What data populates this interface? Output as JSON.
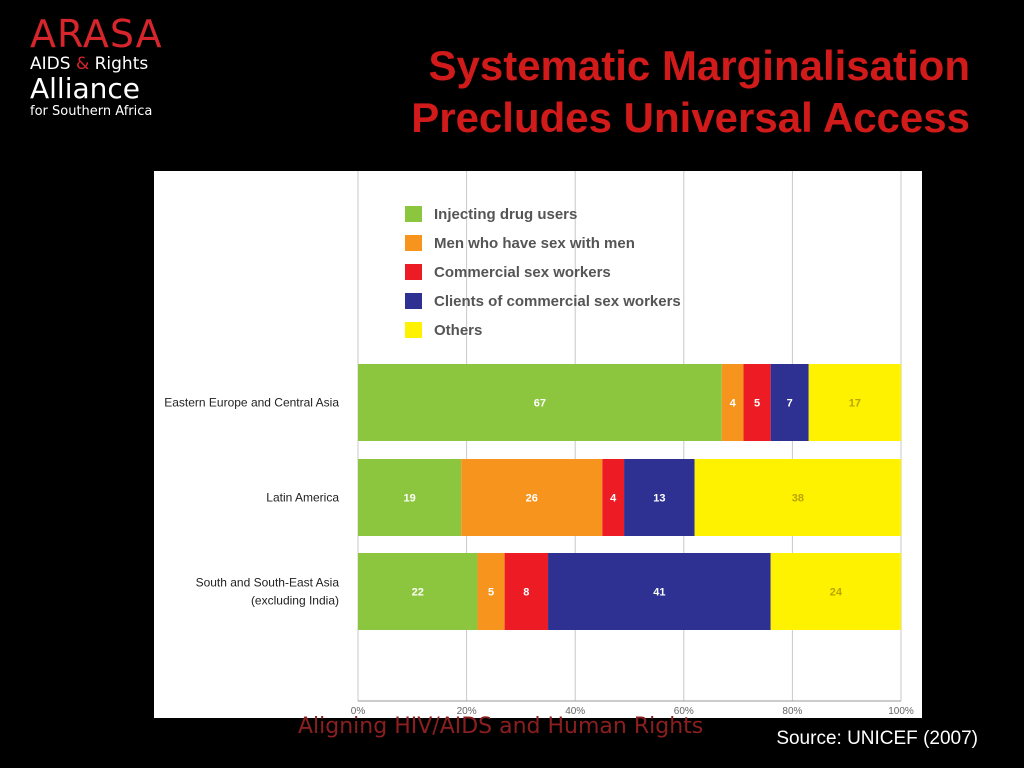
{
  "logo": {
    "line1": "ARASA",
    "line2a": "AIDS",
    "line2amp": "&",
    "line2b": "Rights",
    "line3": "Alliance",
    "line4": "for Southern Africa"
  },
  "title": {
    "line1": "Systematic Marginalisation",
    "line2": "Precludes Universal Access"
  },
  "tagline": "Aligning HIV/AIDS and Human Rights",
  "source": "Source: UNICEF (2007)",
  "chart_data": {
    "type": "bar",
    "orientation": "horizontal",
    "stacked": true,
    "categories": [
      [
        "Eastern Europe and Central Asia"
      ],
      [
        "Latin America"
      ],
      [
        "South and South-East Asia",
        "(excluding India)"
      ]
    ],
    "series": [
      {
        "name": "Injecting drug users",
        "color": "#8cc63f",
        "values": [
          67,
          19,
          22
        ]
      },
      {
        "name": "Men who have sex with men",
        "color": "#f7941d",
        "values": [
          4,
          26,
          5
        ]
      },
      {
        "name": "Commercial sex workers",
        "color": "#ed1c24",
        "values": [
          5,
          4,
          8
        ]
      },
      {
        "name": "Clients of commercial sex workers",
        "color": "#2e3192",
        "values": [
          7,
          13,
          41
        ]
      },
      {
        "name": "Others",
        "color": "#fff200",
        "values": [
          17,
          38,
          24
        ]
      }
    ],
    "xticks": [
      "0%",
      "20%",
      "40%",
      "60%",
      "80%",
      "100%"
    ],
    "xlim": [
      0,
      100
    ],
    "grid": true,
    "legend": "top-left",
    "label_color_dark": "#ffffff",
    "label_color_light": "#b8a600"
  }
}
